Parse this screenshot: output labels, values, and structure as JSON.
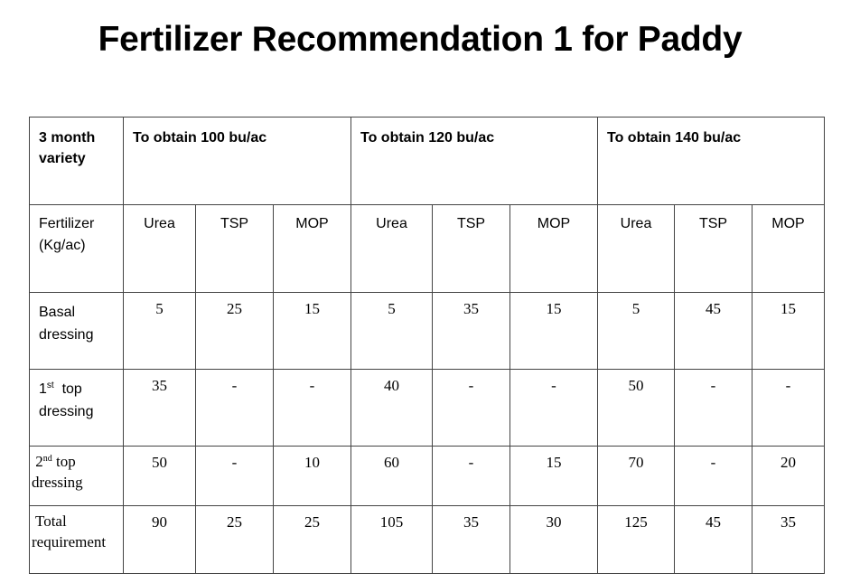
{
  "title": "Fertilizer Recommendation 1 for Paddy",
  "table": {
    "header": {
      "variety_line1": "3 month",
      "variety_line2": "variety",
      "groups": [
        "To obtain 100 bu/ac",
        "To obtain 120 bu/ac",
        "To obtain 140 bu/ac"
      ]
    },
    "fertilizer_row": {
      "label_line1": "Fertilizer",
      "label_line2": "(Kg/ac)",
      "columns": [
        "Urea",
        "TSP",
        "MOP",
        "Urea",
        "TSP",
        "MOP",
        "Urea",
        "TSP",
        "MOP"
      ]
    },
    "rows": [
      {
        "label_line1": "Basal",
        "label_line2": "dressing",
        "values": [
          "5",
          "25",
          "15",
          "5",
          "35",
          "15",
          "5",
          "45",
          "15"
        ]
      },
      {
        "label_num": "1",
        "label_sup": "st",
        "label_rest": "top",
        "label_line2": "dressing",
        "values": [
          "35",
          "-",
          "-",
          "40",
          "-",
          "-",
          "50",
          "-",
          "-"
        ]
      },
      {
        "label_num": "2",
        "label_sup": "nd",
        "label_rest": "top",
        "label_line2": "dressing",
        "values": [
          "50",
          "-",
          "10",
          "60",
          "-",
          "15",
          "70",
          "-",
          "20"
        ]
      },
      {
        "label_line1": "Total",
        "label_line2": "requirement",
        "values": [
          "90",
          "25",
          "25",
          "105",
          "35",
          "30",
          "125",
          "45",
          "35"
        ]
      }
    ]
  }
}
